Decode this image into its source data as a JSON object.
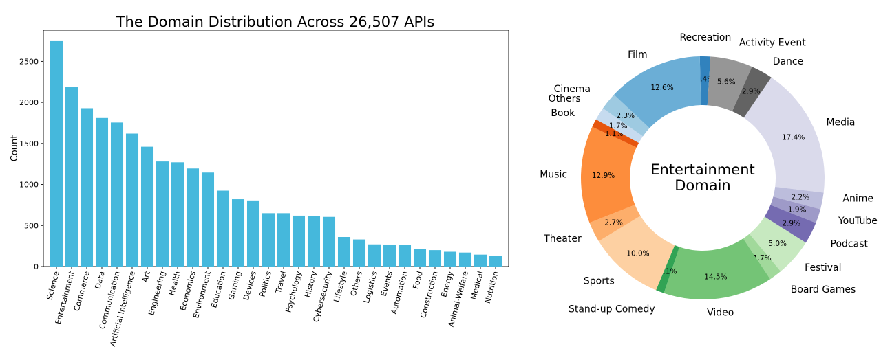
{
  "chart_data": [
    {
      "type": "bar",
      "title": "The Domain Distribution Across 26,507 APIs",
      "xlabel": "",
      "ylabel": "Count",
      "ylim": [
        0,
        2880
      ],
      "yticks": [
        0,
        500,
        1000,
        1500,
        2000,
        2500
      ],
      "bar_color": "#45b8dc",
      "categories": [
        "Science",
        "Entertainment",
        "Commerce",
        "Data",
        "Communication",
        "Artificial Intelligence",
        "Art",
        "Engineering",
        "Health",
        "Economics",
        "Environment",
        "Education",
        "Gaming",
        "Devices",
        "Politics",
        "Travel",
        "Psychology",
        "History",
        "Cybersecurity",
        "Lifestyle",
        "Others",
        "Logistics",
        "Events",
        "Automation",
        "Food",
        "Construction",
        "Energy",
        "Animal-Welfare",
        "Medical",
        "Nutrition"
      ],
      "values": [
        2755,
        2185,
        1930,
        1810,
        1755,
        1620,
        1460,
        1280,
        1270,
        1195,
        1145,
        925,
        820,
        805,
        650,
        650,
        620,
        615,
        605,
        360,
        330,
        270,
        268,
        262,
        210,
        200,
        180,
        170,
        145,
        130
      ]
    },
    {
      "type": "pie",
      "title": "",
      "center_label_line1": "Entertainment",
      "center_label_line2": "Domain",
      "slices": [
        {
          "label": "Recreation",
          "pct": 1.4,
          "pct_label": "1.4%",
          "color": "#3182bd"
        },
        {
          "label": "Activity Event",
          "pct": 5.6,
          "pct_label": "5.6%",
          "color": "#969696"
        },
        {
          "label": "Dance",
          "pct": 2.9,
          "pct_label": "2.9%",
          "color": "#636363"
        },
        {
          "label": "Media",
          "pct": 17.4,
          "pct_label": "17.4%",
          "color": "#dadaeb"
        },
        {
          "label": "Anime",
          "pct": 2.2,
          "pct_label": "2.2%",
          "color": "#bcbddc"
        },
        {
          "label": "YouTube",
          "pct": 1.9,
          "pct_label": "1.9%",
          "color": "#9e9ac8"
        },
        {
          "label": "Podcast",
          "pct": 2.9,
          "pct_label": "2.9%",
          "color": "#756bb1"
        },
        {
          "label": "Festival",
          "pct": 5.0,
          "pct_label": "5.0%",
          "color": "#c7e9c0"
        },
        {
          "label": "Board Games",
          "pct": 1.7,
          "pct_label": "1.7%",
          "color": "#a1d99b"
        },
        {
          "label": "Video",
          "pct": 14.5,
          "pct_label": "14.5%",
          "color": "#74c476"
        },
        {
          "label": "Stand-up Comedy",
          "pct": 1.1,
          "pct_label": "1.1%",
          "color": "#31a354"
        },
        {
          "label": "Sports",
          "pct": 10.0,
          "pct_label": "10.0%",
          "color": "#fdd0a2"
        },
        {
          "label": "Theater",
          "pct": 2.7,
          "pct_label": "2.7%",
          "color": "#fdae6b"
        },
        {
          "label": "Music",
          "pct": 12.9,
          "pct_label": "12.9%",
          "color": "#fd8d3c"
        },
        {
          "label": "Book",
          "pct": 1.1,
          "pct_label": "1.1%",
          "color": "#e6550d"
        },
        {
          "label": "Others",
          "pct": 1.7,
          "pct_label": "1.7%",
          "color": "#c6dbef"
        },
        {
          "label": "Cinema",
          "pct": 2.3,
          "pct_label": "2.3%",
          "color": "#9ecae1"
        },
        {
          "label": "Film",
          "pct": 12.6,
          "pct_label": "12.6%",
          "color": "#6baed6"
        }
      ]
    }
  ]
}
